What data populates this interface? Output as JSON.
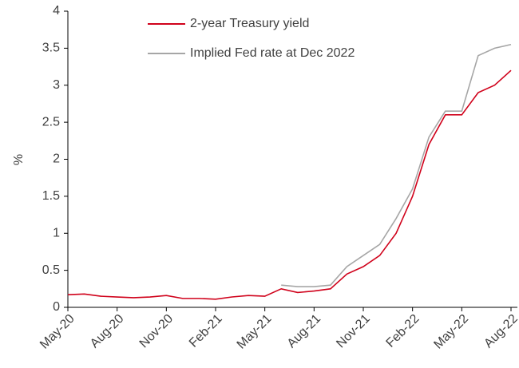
{
  "chart_data": {
    "type": "line",
    "y_label": "%",
    "categories": [
      "May-20",
      null,
      null,
      "Aug-20",
      null,
      null,
      "Nov-20",
      null,
      null,
      "Feb-21",
      null,
      null,
      "May-21",
      null,
      null,
      "Aug-21",
      null,
      null,
      "Nov-21",
      null,
      null,
      "Feb-22",
      null,
      null,
      "May-22",
      null,
      null,
      "Aug-22"
    ],
    "series": [
      {
        "name": "2-year Treasury yield",
        "color": "#d0021b",
        "values": [
          0.17,
          0.18,
          0.15,
          0.14,
          0.13,
          0.14,
          0.16,
          0.12,
          0.12,
          0.11,
          0.14,
          0.16,
          0.15,
          0.25,
          0.2,
          0.22,
          0.25,
          0.45,
          0.55,
          0.7,
          1.0,
          1.5,
          2.2,
          2.6,
          2.6,
          2.9,
          3.0,
          3.2
        ]
      },
      {
        "name": "Implied Fed rate at Dec 2022",
        "color": "#a6a6a6",
        "values": [
          null,
          null,
          null,
          null,
          null,
          null,
          null,
          null,
          null,
          null,
          null,
          null,
          null,
          0.3,
          0.28,
          0.28,
          0.3,
          0.55,
          0.7,
          0.85,
          1.2,
          1.6,
          2.3,
          2.65,
          2.65,
          3.4,
          3.5,
          3.55
        ]
      }
    ],
    "ylim": [
      0,
      4
    ],
    "yticks": [
      0,
      0.5,
      1,
      1.5,
      2,
      2.5,
      3,
      3.5,
      4
    ],
    "legend": "top",
    "grid": false
  }
}
